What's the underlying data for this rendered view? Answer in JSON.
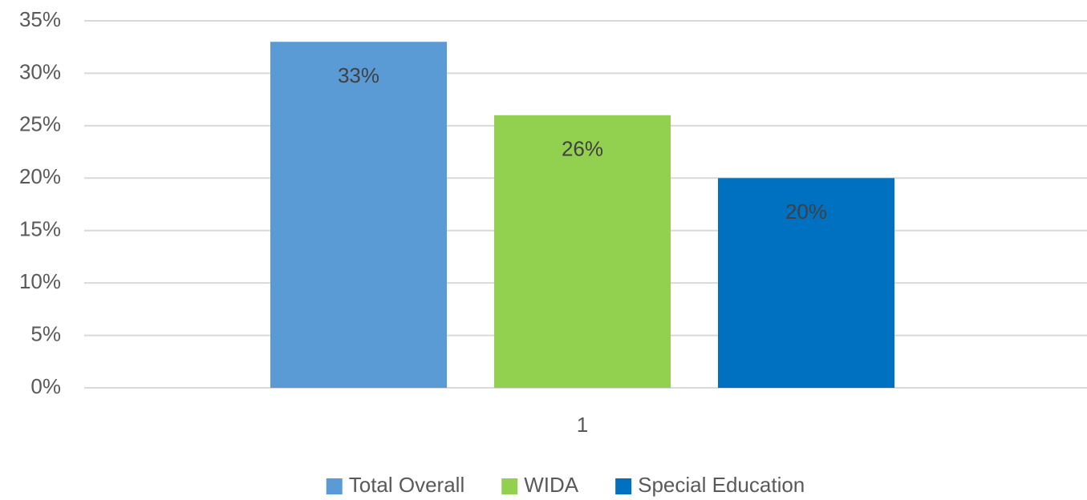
{
  "chart_data": {
    "type": "bar",
    "categories": [
      "1"
    ],
    "series": [
      {
        "name": "Total Overall",
        "color": "#5b9bd5",
        "values": [
          33
        ],
        "value_labels": [
          "33%"
        ]
      },
      {
        "name": "WIDA",
        "color": "#92d050",
        "values": [
          26
        ],
        "value_labels": [
          "26%"
        ]
      },
      {
        "name": "Special Education",
        "color": "#0070c0",
        "values": [
          20
        ],
        "value_labels": [
          "20%"
        ]
      }
    ],
    "ylim": [
      0,
      35
    ],
    "yticks": [
      {
        "value": 0,
        "label": "0%"
      },
      {
        "value": 5,
        "label": "5%"
      },
      {
        "value": 10,
        "label": "10%"
      },
      {
        "value": 15,
        "label": "15%"
      },
      {
        "value": 20,
        "label": "20%"
      },
      {
        "value": 25,
        "label": "25%"
      },
      {
        "value": 30,
        "label": "30%"
      },
      {
        "value": 35,
        "label": "35%"
      }
    ],
    "grid": true,
    "legend": "bottom"
  }
}
